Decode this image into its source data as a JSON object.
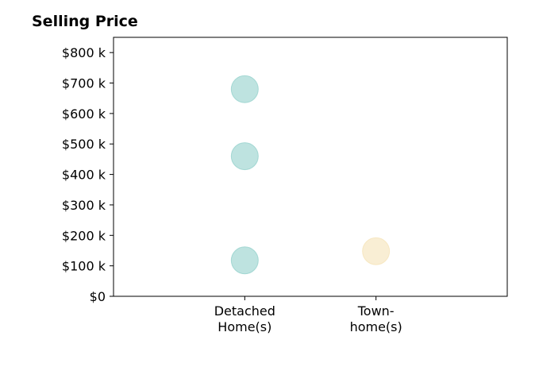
{
  "chart_data": {
    "type": "scatter",
    "title": "Selling Price",
    "xlabel": "",
    "ylabel": "",
    "categories": [
      "Detached Home(s)",
      "Town- home(s)"
    ],
    "category_lines": [
      [
        "Detached",
        "Home(s)"
      ],
      [
        "Town-",
        "home(s)"
      ]
    ],
    "ylim": [
      0,
      850
    ],
    "yticks": [
      0,
      100,
      200,
      300,
      400,
      500,
      600,
      700,
      800
    ],
    "ytick_labels": [
      "$0",
      "$100 k",
      "$200 k",
      "$300 k",
      "$400 k",
      "$500 k",
      "$600 k",
      "$700 k",
      "$800 k"
    ],
    "grid": false,
    "points": [
      {
        "category": "Detached Home(s)",
        "value": 680,
        "color": "#7ec8c2"
      },
      {
        "category": "Detached Home(s)",
        "value": 460,
        "color": "#7ec8c2"
      },
      {
        "category": "Detached Home(s)",
        "value": 118,
        "color": "#7ec8c2"
      },
      {
        "category": "Town- home(s)",
        "value": 148,
        "color": "#f3ddaa"
      }
    ]
  }
}
